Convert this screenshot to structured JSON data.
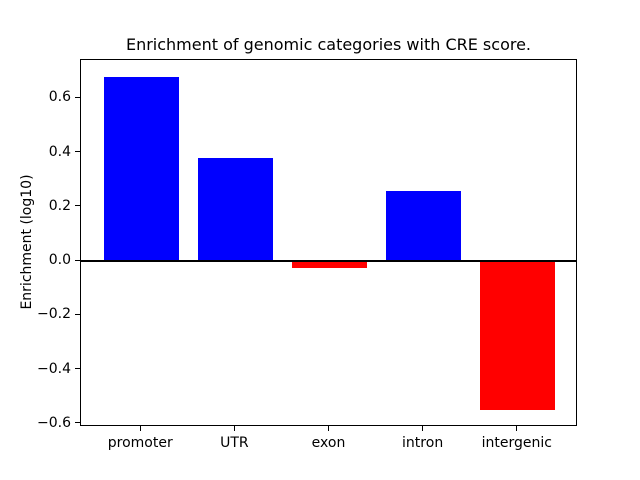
{
  "chart_data": {
    "type": "bar",
    "title": "Enrichment of genomic categories with CRE score.",
    "xlabel": "",
    "ylabel": "Enrichment (log10)",
    "categories": [
      "promoter",
      "UTR",
      "exon",
      "intron",
      "intergenic"
    ],
    "values": [
      0.68,
      0.38,
      -0.025,
      0.26,
      -0.55
    ],
    "bar_colors": [
      "#0000ff",
      "#0000ff",
      "#ff0000",
      "#0000ff",
      "#ff0000"
    ],
    "positive_color": "#0000ff",
    "negative_color": "#ff0000",
    "bar_width_fraction": 0.8,
    "ylim": [
      -0.6115,
      0.7415
    ],
    "xlim": [
      -0.64,
      4.64
    ],
    "yticks": {
      "values": [
        0.6,
        0.4,
        0.2,
        0.0,
        -0.2,
        -0.4,
        -0.6
      ],
      "labels": [
        "0.6",
        "0.4",
        "0.2",
        "0.0",
        "−0.2",
        "−0.4",
        "−0.6"
      ]
    },
    "grid": false,
    "legend": null,
    "zero_line": true,
    "background_color": "#ffffff",
    "axis_color": "#000000"
  }
}
